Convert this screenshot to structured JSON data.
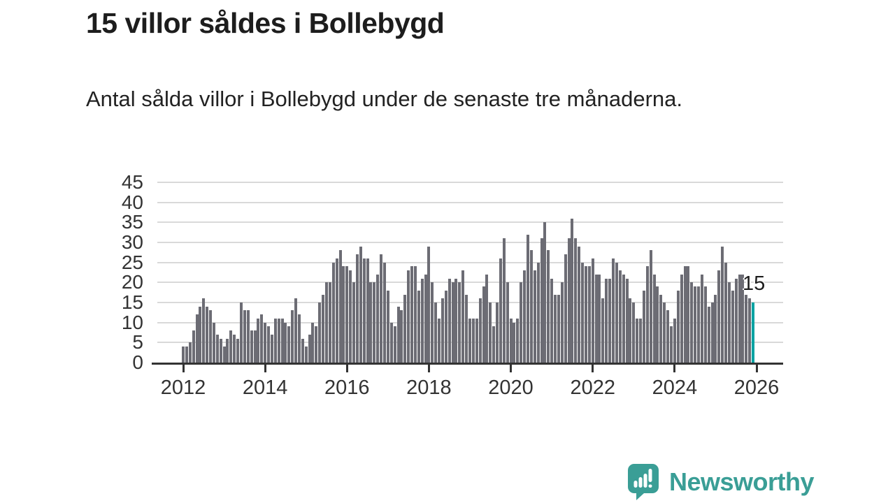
{
  "title": "15 villor såldes i Bollebygd",
  "subtitle": "Antal sålda villor i Bollebygd under de senaste tre månaderna.",
  "logo": {
    "text": "Newsworthy",
    "icon": "newsworthy-speech-bubble-bar-chart-icon"
  },
  "colors": {
    "bar": "#6c6c74",
    "highlight": "#00a3a3",
    "logo_teal": "#3a9e96",
    "axis_text": "#333333",
    "title_text": "#1d1d1d",
    "gridline": "#d9d9d9",
    "axis_line": "#333333"
  },
  "chart_data": {
    "type": "bar",
    "title": "15 villor såldes i Bollebygd",
    "subtitle": "Antal sålda villor i Bollebygd under de senaste tre månaderna.",
    "xlabel": "",
    "ylabel": "",
    "x_unit": "month",
    "start_month": "2012-01",
    "end_month": "2025-12",
    "x_tick_labels": [
      "2012",
      "2014",
      "2016",
      "2018",
      "2020",
      "2022",
      "2024",
      "2026"
    ],
    "y_ticks": [
      0,
      5,
      10,
      15,
      20,
      25,
      30,
      35,
      40,
      45
    ],
    "ylim": [
      0,
      45
    ],
    "grid": "horizontal",
    "legend": "none",
    "values": [
      4,
      4,
      5,
      8,
      12,
      14,
      16,
      14,
      13,
      10,
      7,
      6,
      4,
      6,
      8,
      7,
      6,
      15,
      13,
      13,
      8,
      8,
      11,
      12,
      10,
      9,
      7,
      11,
      11,
      11,
      10,
      9,
      13,
      16,
      12,
      6,
      4,
      7,
      10,
      9,
      15,
      17,
      20,
      20,
      25,
      26,
      28,
      24,
      24,
      23,
      20,
      27,
      29,
      26,
      26,
      20,
      20,
      22,
      27,
      25,
      18,
      10,
      9,
      14,
      13,
      17,
      23,
      24,
      24,
      18,
      21,
      22,
      29,
      20,
      15,
      11,
      16,
      18,
      21,
      20,
      21,
      20,
      23,
      17,
      11,
      11,
      11,
      16,
      19,
      22,
      15,
      9,
      15,
      26,
      31,
      20,
      11,
      10,
      11,
      20,
      23,
      32,
      28,
      23,
      25,
      31,
      35,
      28,
      21,
      17,
      17,
      20,
      27,
      31,
      36,
      31,
      29,
      25,
      24,
      24,
      26,
      22,
      22,
      16,
      21,
      21,
      26,
      25,
      23,
      22,
      21,
      16,
      15,
      11,
      11,
      18,
      24,
      28,
      22,
      19,
      17,
      15,
      13,
      9,
      11,
      18,
      22,
      24,
      24,
      20,
      19,
      19,
      22,
      19,
      14,
      15,
      17,
      23,
      29,
      25,
      20,
      18,
      21,
      22,
      22,
      17,
      16,
      15
    ],
    "highlight": {
      "index": 167,
      "value": 15,
      "label": "15",
      "color": "#00a3a3"
    }
  }
}
